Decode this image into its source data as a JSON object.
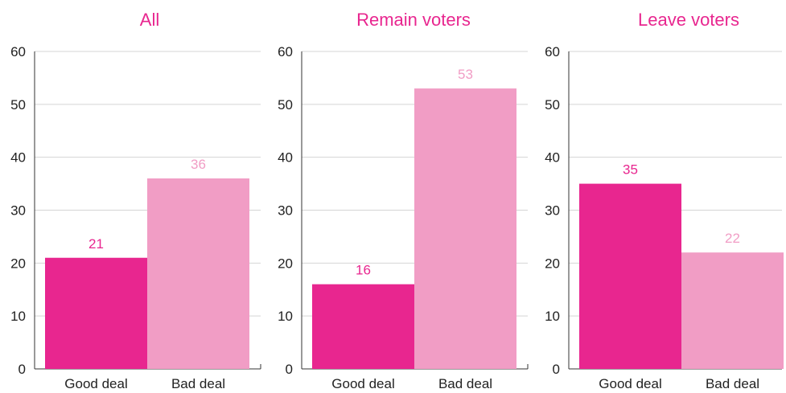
{
  "colors": {
    "good": "#E8268F",
    "bad": "#F19DC5",
    "title": "#E8268F",
    "grid": "#d4d4d4",
    "axis": "#333333"
  },
  "chart_data": [
    {
      "type": "bar",
      "title": "All",
      "categories": [
        "Good deal",
        "Bad deal"
      ],
      "values": [
        21,
        36
      ],
      "ylim": [
        0,
        60
      ],
      "yticks": [
        0,
        10,
        20,
        30,
        40,
        50,
        60
      ],
      "grid": true
    },
    {
      "type": "bar",
      "title": "Remain voters",
      "categories": [
        "Good deal",
        "Bad deal"
      ],
      "values": [
        16,
        53
      ],
      "ylim": [
        0,
        60
      ],
      "yticks": [
        0,
        10,
        20,
        30,
        40,
        50,
        60
      ],
      "grid": true
    },
    {
      "type": "bar",
      "title": "Leave voters",
      "categories": [
        "Good deal",
        "Bad deal"
      ],
      "values": [
        35,
        22
      ],
      "ylim": [
        0,
        60
      ],
      "yticks": [
        0,
        10,
        20,
        30,
        40,
        50,
        60
      ],
      "grid": true
    }
  ]
}
